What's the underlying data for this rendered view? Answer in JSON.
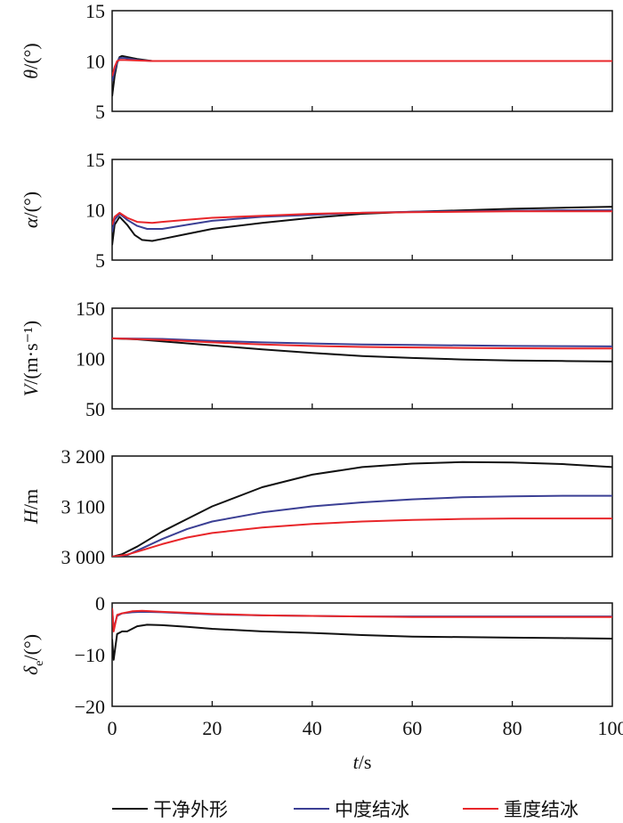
{
  "chart_data": [
    {
      "type": "line",
      "ylabel": {
        "symbol": "θ",
        "sub": "",
        "unit": "/(°)"
      },
      "ylim": [
        5,
        15
      ],
      "yticks": [
        5,
        10,
        15
      ],
      "ytick_labels": [
        "5",
        "10",
        "15"
      ],
      "series": [
        {
          "name": "干净外形",
          "color": "#111111",
          "x": [
            0,
            0.5,
            1,
            1.5,
            2,
            3,
            5,
            8,
            100
          ],
          "y": [
            6.5,
            8.5,
            9.8,
            10.4,
            10.5,
            10.4,
            10.2,
            10.0,
            10.0
          ]
        },
        {
          "name": "中度结冰",
          "color": "#3b3f94",
          "x": [
            0,
            0.5,
            1,
            1.5,
            2.5,
            5,
            8,
            100
          ],
          "y": [
            8.0,
            9.0,
            9.9,
            10.3,
            10.3,
            10.1,
            10.0,
            10.0
          ]
        },
        {
          "name": "重度结冰",
          "color": "#e8262a",
          "x": [
            0,
            0.5,
            1,
            1.5,
            2.5,
            5,
            8,
            100
          ],
          "y": [
            8.5,
            9.4,
            10.0,
            10.1,
            10.1,
            10.05,
            10.0,
            10.0
          ]
        }
      ]
    },
    {
      "type": "line",
      "ylabel": {
        "symbol": "α",
        "sub": "",
        "unit": "/(°)"
      },
      "ylim": [
        5,
        15
      ],
      "yticks": [
        5,
        10,
        15
      ],
      "ytick_labels": [
        "5",
        "10",
        "15"
      ],
      "series": [
        {
          "name": "干净外形",
          "color": "#111111",
          "x": [
            0,
            0.5,
            1.5,
            3,
            4.5,
            6,
            8,
            10,
            15,
            20,
            30,
            40,
            50,
            60,
            70,
            80,
            90,
            100
          ],
          "y": [
            6.5,
            8.5,
            9.3,
            8.5,
            7.5,
            7.0,
            6.9,
            7.1,
            7.6,
            8.1,
            8.7,
            9.2,
            9.6,
            9.8,
            9.95,
            10.1,
            10.2,
            10.3
          ]
        },
        {
          "name": "中度结冰",
          "color": "#3b3f94",
          "x": [
            0,
            0.5,
            1.5,
            3,
            5,
            7,
            10,
            15,
            20,
            30,
            40,
            50,
            60,
            70,
            80,
            90,
            100
          ],
          "y": [
            7.8,
            9.0,
            9.6,
            9.0,
            8.4,
            8.1,
            8.1,
            8.5,
            8.9,
            9.3,
            9.5,
            9.7,
            9.8,
            9.85,
            9.9,
            9.95,
            9.95
          ]
        },
        {
          "name": "重度结冰",
          "color": "#e8262a",
          "x": [
            0,
            0.5,
            1.5,
            3,
            5,
            8,
            10,
            15,
            20,
            30,
            40,
            50,
            60,
            70,
            80,
            90,
            100
          ],
          "y": [
            8.5,
            9.3,
            9.7,
            9.2,
            8.8,
            8.7,
            8.8,
            9.0,
            9.2,
            9.4,
            9.6,
            9.7,
            9.75,
            9.8,
            9.85,
            9.85,
            9.85
          ]
        }
      ]
    },
    {
      "type": "line",
      "ylabel": {
        "symbol": "V",
        "sub": "",
        "unit": "/(m·s⁻¹)"
      },
      "ylim": [
        50,
        150
      ],
      "yticks": [
        50,
        100,
        150
      ],
      "ytick_labels": [
        "50",
        "100",
        "150"
      ],
      "series": [
        {
          "name": "干净外形",
          "color": "#111111",
          "x": [
            0,
            5,
            10,
            20,
            30,
            40,
            50,
            60,
            70,
            80,
            90,
            100
          ],
          "y": [
            120,
            119,
            117,
            113,
            109,
            105.5,
            102.5,
            100.5,
            99,
            98,
            97.5,
            97
          ]
        },
        {
          "name": "中度结冰",
          "color": "#3b3f94",
          "x": [
            0,
            10,
            20,
            30,
            40,
            50,
            60,
            70,
            80,
            90,
            100
          ],
          "y": [
            120,
            119.5,
            117.5,
            116,
            115,
            114,
            113.5,
            113,
            112.5,
            112.3,
            112
          ]
        },
        {
          "name": "重度结冰",
          "color": "#e8262a",
          "x": [
            0,
            10,
            20,
            30,
            40,
            50,
            60,
            70,
            80,
            90,
            100
          ],
          "y": [
            120,
            118.5,
            116,
            114,
            112.5,
            111.5,
            111,
            110.5,
            110.2,
            110,
            110
          ]
        }
      ]
    },
    {
      "type": "line",
      "ylabel": {
        "symbol": "H",
        "sub": "",
        "unit": "/m"
      },
      "ylim": [
        3000,
        3200
      ],
      "yticks": [
        3000,
        3100,
        3200
      ],
      "ytick_labels": [
        "3 000",
        "3 100",
        "3 200"
      ],
      "series": [
        {
          "name": "干净外形",
          "color": "#111111",
          "x": [
            0,
            2,
            5,
            10,
            15,
            20,
            30,
            40,
            50,
            60,
            70,
            80,
            90,
            100
          ],
          "y": [
            3000,
            3005,
            3020,
            3050,
            3075,
            3100,
            3138,
            3163,
            3178,
            3185,
            3188,
            3187,
            3184,
            3178
          ]
        },
        {
          "name": "中度结冰",
          "color": "#3b3f94",
          "x": [
            0,
            3,
            5,
            10,
            15,
            20,
            30,
            40,
            50,
            60,
            70,
            80,
            90,
            100
          ],
          "y": [
            3000,
            3003,
            3012,
            3035,
            3055,
            3070,
            3088,
            3100,
            3108,
            3114,
            3118,
            3120,
            3121,
            3121
          ]
        },
        {
          "name": "重度结冰",
          "color": "#e8262a",
          "x": [
            0,
            3,
            5,
            10,
            15,
            20,
            30,
            40,
            50,
            60,
            70,
            80,
            90,
            100
          ],
          "y": [
            3000,
            3004,
            3010,
            3025,
            3038,
            3047,
            3058,
            3065,
            3070,
            3073,
            3075,
            3076,
            3076,
            3076
          ]
        }
      ]
    },
    {
      "type": "line",
      "ylabel": {
        "symbol": "δ",
        "sub": "e",
        "unit": "/(°)"
      },
      "ylim": [
        -20,
        0
      ],
      "yticks": [
        -20,
        -10,
        0
      ],
      "ytick_labels": [
        "−20",
        "−10",
        "0"
      ],
      "series": [
        {
          "name": "干净外形",
          "color": "#111111",
          "x": [
            0,
            0.3,
            1,
            2,
            3,
            5,
            7,
            10,
            15,
            20,
            30,
            40,
            50,
            60,
            70,
            80,
            90,
            100
          ],
          "y": [
            -7,
            -11,
            -6,
            -5.5,
            -5.5,
            -4.5,
            -4.2,
            -4.3,
            -4.6,
            -5,
            -5.5,
            -5.8,
            -6.2,
            -6.5,
            -6.6,
            -6.7,
            -6.8,
            -6.9
          ]
        },
        {
          "name": "中度结冰",
          "color": "#3b3f94",
          "x": [
            0,
            0.3,
            1,
            2,
            4,
            6,
            10,
            15,
            20,
            30,
            40,
            50,
            60,
            70,
            80,
            90,
            100
          ],
          "y": [
            -1,
            -5,
            -2.5,
            -2,
            -1.8,
            -1.7,
            -1.8,
            -2,
            -2.2,
            -2.4,
            -2.5,
            -2.6,
            -2.6,
            -2.6,
            -2.6,
            -2.6,
            -2.6
          ]
        },
        {
          "name": "重度结冰",
          "color": "#e8262a",
          "x": [
            0,
            0.3,
            1,
            2,
            4,
            6,
            10,
            15,
            20,
            30,
            40,
            50,
            60,
            70,
            80,
            90,
            100
          ],
          "y": [
            -1,
            -5.5,
            -2.3,
            -2,
            -1.6,
            -1.5,
            -1.7,
            -1.9,
            -2.1,
            -2.4,
            -2.5,
            -2.6,
            -2.7,
            -2.7,
            -2.7,
            -2.7,
            -2.7
          ]
        }
      ]
    }
  ],
  "xaxis": {
    "xlim": [
      0,
      100
    ],
    "xticks": [
      0,
      20,
      40,
      60,
      80,
      100
    ],
    "xtick_labels": [
      "0",
      "20",
      "40",
      "60",
      "80",
      "100"
    ],
    "label_symbol": "t",
    "label_unit": "/s"
  },
  "legend": [
    {
      "label": "干净外形",
      "color": "#111111"
    },
    {
      "label": "中度结冰",
      "color": "#3b3f94"
    },
    {
      "label": "重度结冰",
      "color": "#e8262a"
    }
  ]
}
